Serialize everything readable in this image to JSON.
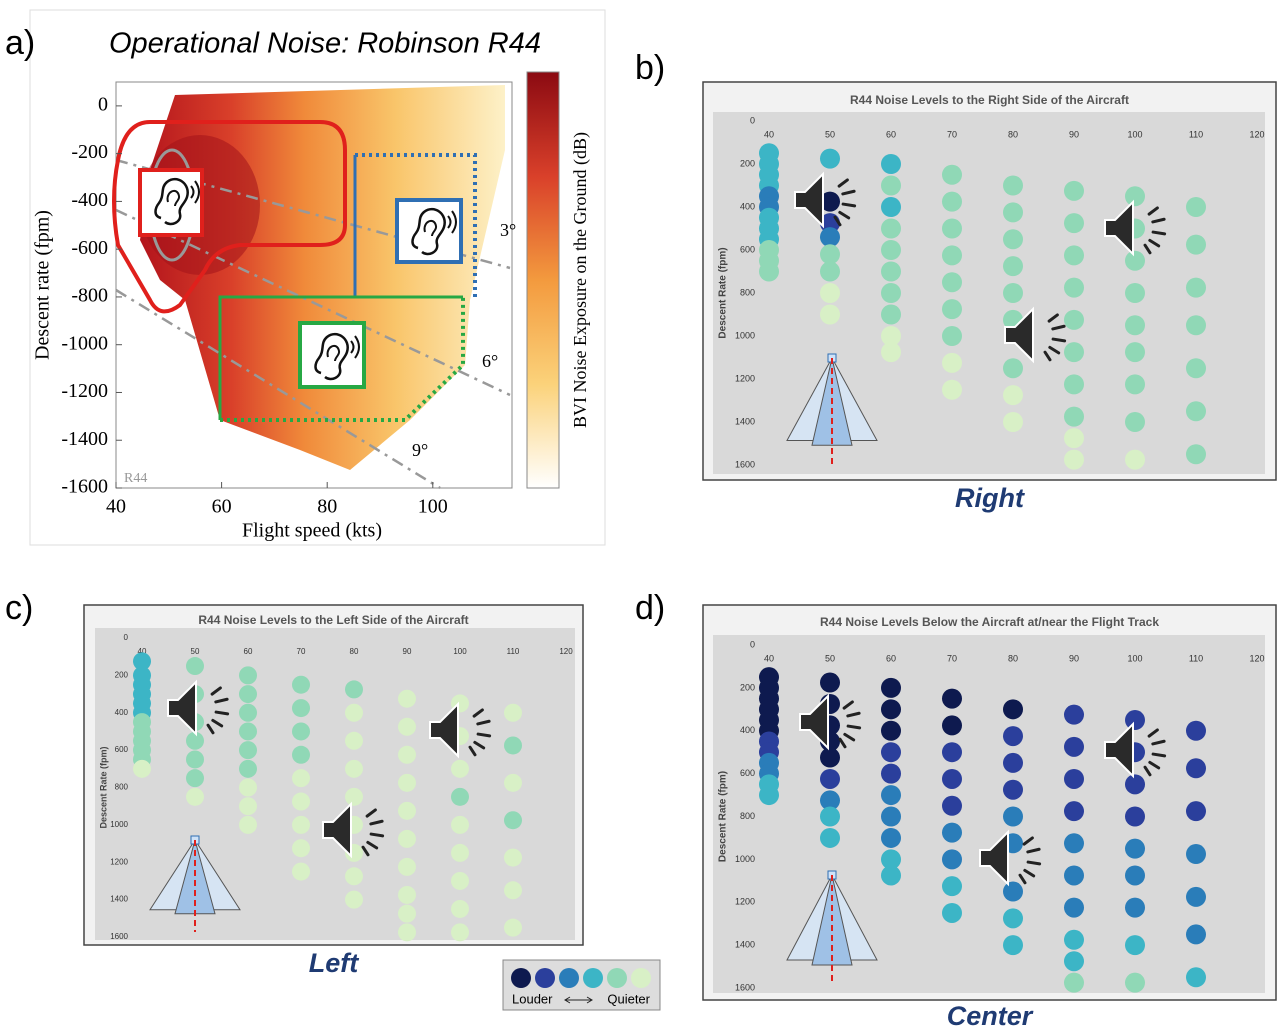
{
  "panels": [
    "a)",
    "b)",
    "c)",
    "d)"
  ],
  "legend": {
    "colors": [
      "#0e1a4f",
      "#2b3f9c",
      "#2a7db9",
      "#3cb5c6",
      "#90d8b6",
      "#d8f0c6"
    ],
    "labels": [
      "Louder",
      "Quieter"
    ]
  },
  "chart_data": [
    {
      "type": "heatmap",
      "title": "Operational Noise: Robinson R44",
      "xlabel": "Flight speed (kts)",
      "ylabel": "Descent rate (fpm)",
      "colorbar_label": "BVI Noise Exposure on the Ground (dB)",
      "xlim": [
        40,
        115
      ],
      "ylim": [
        -1600,
        100
      ],
      "xticks": [
        40,
        60,
        80,
        100
      ],
      "yticks": [
        0,
        -200,
        -400,
        -600,
        -800,
        -1000,
        -1200,
        -1400,
        -1600
      ],
      "annotations": [
        "3°",
        "6°",
        "9°"
      ],
      "watermark": "R44"
    },
    {
      "type": "scatter",
      "title": "R44 Noise Levels to the Right Side of the Aircraft",
      "ylabel": "Descent Rate (fpm)",
      "caption": "Right",
      "xlim": [
        40,
        120
      ],
      "ylim": [
        0,
        1600
      ],
      "xticks": [
        40,
        50,
        60,
        70,
        80,
        90,
        100,
        110,
        120
      ],
      "yticks": [
        0,
        200,
        400,
        600,
        800,
        1000,
        1200,
        1400,
        1600
      ],
      "columns": [
        {
          "x": 40,
          "y": [
            150,
            200,
            250,
            300,
            350,
            400,
            450,
            500,
            550,
            600,
            650,
            700
          ],
          "levels": [
            3,
            3,
            3,
            3,
            2,
            2,
            3,
            3,
            3,
            4,
            4,
            4
          ]
        },
        {
          "x": 50,
          "y": [
            175,
            375,
            475,
            540,
            620,
            700,
            800,
            900
          ],
          "levels": [
            3,
            0,
            1,
            2,
            4,
            4,
            5,
            5
          ]
        },
        {
          "x": 60,
          "y": [
            200,
            300,
            400,
            500,
            600,
            700,
            800,
            900,
            1000,
            1075
          ],
          "levels": [
            3,
            4,
            3,
            4,
            4,
            4,
            4,
            4,
            5,
            5
          ]
        },
        {
          "x": 70,
          "y": [
            250,
            375,
            500,
            625,
            750,
            875,
            1000,
            1125,
            1250
          ],
          "levels": [
            4,
            4,
            4,
            4,
            4,
            4,
            4,
            5,
            5
          ]
        },
        {
          "x": 80,
          "y": [
            300,
            425,
            550,
            675,
            800,
            925,
            1150,
            1275,
            1400
          ],
          "levels": [
            4,
            4,
            4,
            4,
            4,
            4,
            4,
            5,
            5
          ]
        },
        {
          "x": 90,
          "y": [
            325,
            475,
            625,
            775,
            925,
            1075,
            1225,
            1375,
            1475,
            1575
          ],
          "levels": [
            4,
            4,
            4,
            4,
            4,
            4,
            4,
            4,
            5,
            5
          ]
        },
        {
          "x": 100,
          "y": [
            350,
            500,
            650,
            800,
            950,
            1075,
            1225,
            1400,
            1575
          ],
          "levels": [
            4,
            4,
            4,
            4,
            4,
            4,
            4,
            4,
            5
          ]
        },
        {
          "x": 110,
          "y": [
            400,
            575,
            775,
            950,
            1150,
            1350,
            1550
          ],
          "levels": [
            4,
            4,
            4,
            4,
            4,
            4,
            4
          ]
        }
      ]
    },
    {
      "type": "scatter",
      "title": "R44 Noise Levels to the Left Side of the Aircraft",
      "ylabel": "Descent Rate (fpm)",
      "caption": "Left",
      "xlim": [
        40,
        120
      ],
      "ylim": [
        0,
        1600
      ],
      "xticks": [
        40,
        50,
        60,
        70,
        80,
        90,
        100,
        110,
        120
      ],
      "yticks": [
        0,
        200,
        400,
        600,
        800,
        1000,
        1200,
        1400,
        1600
      ],
      "columns": [
        {
          "x": 40,
          "y": [
            125,
            200,
            250,
            300,
            350,
            400,
            450,
            500,
            550,
            600,
            650,
            700
          ],
          "levels": [
            3,
            3,
            3,
            3,
            3,
            3,
            4,
            4,
            4,
            4,
            4,
            5
          ]
        },
        {
          "x": 50,
          "y": [
            150,
            300,
            450,
            550,
            650,
            750,
            850
          ],
          "levels": [
            4,
            4,
            4,
            4,
            4,
            4,
            5
          ]
        },
        {
          "x": 60,
          "y": [
            200,
            300,
            400,
            500,
            600,
            700,
            800,
            900,
            1000
          ],
          "levels": [
            4,
            4,
            4,
            4,
            4,
            4,
            5,
            5,
            5
          ]
        },
        {
          "x": 70,
          "y": [
            250,
            375,
            500,
            625,
            750,
            875,
            1000,
            1125,
            1250
          ],
          "levels": [
            4,
            4,
            4,
            4,
            5,
            5,
            5,
            5,
            5
          ]
        },
        {
          "x": 80,
          "y": [
            275,
            400,
            550,
            700,
            850,
            1000,
            1150,
            1275,
            1400
          ],
          "levels": [
            4,
            5,
            5,
            5,
            5,
            5,
            5,
            5,
            5
          ]
        },
        {
          "x": 90,
          "y": [
            325,
            475,
            625,
            775,
            925,
            1075,
            1225,
            1375,
            1475,
            1575
          ],
          "levels": [
            5,
            5,
            5,
            5,
            5,
            5,
            5,
            5,
            5,
            5
          ]
        },
        {
          "x": 100,
          "y": [
            350,
            525,
            700,
            850,
            1000,
            1150,
            1300,
            1450,
            1575
          ],
          "levels": [
            5,
            5,
            5,
            4,
            5,
            5,
            5,
            5,
            5
          ]
        },
        {
          "x": 110,
          "y": [
            400,
            575,
            775,
            975,
            1175,
            1350,
            1550
          ],
          "levels": [
            5,
            4,
            5,
            4,
            5,
            5,
            5
          ]
        }
      ]
    },
    {
      "type": "scatter",
      "title": "R44 Noise Levels Below the Aircraft at/near the Flight Track",
      "ylabel": "Descent Rate (fpm)",
      "caption": "Center",
      "xlim": [
        40,
        120
      ],
      "ylim": [
        0,
        1600
      ],
      "xticks": [
        40,
        50,
        60,
        70,
        80,
        90,
        100,
        110,
        120
      ],
      "yticks": [
        0,
        200,
        400,
        600,
        800,
        1000,
        1200,
        1400,
        1600
      ],
      "columns": [
        {
          "x": 40,
          "y": [
            150,
            200,
            250,
            300,
            350,
            400,
            450,
            500,
            550,
            600,
            650,
            700
          ],
          "levels": [
            0,
            0,
            0,
            0,
            0,
            0,
            1,
            1,
            2,
            2,
            3,
            3
          ]
        },
        {
          "x": 50,
          "y": [
            175,
            275,
            375,
            450,
            525,
            625,
            725,
            800,
            900
          ],
          "levels": [
            0,
            0,
            0,
            0,
            0,
            1,
            2,
            3,
            3
          ]
        },
        {
          "x": 60,
          "y": [
            200,
            300,
            400,
            500,
            600,
            700,
            800,
            900,
            1000,
            1075
          ],
          "levels": [
            0,
            0,
            0,
            1,
            1,
            2,
            2,
            2,
            3,
            3
          ]
        },
        {
          "x": 70,
          "y": [
            250,
            375,
            500,
            625,
            750,
            875,
            1000,
            1125,
            1250
          ],
          "levels": [
            0,
            0,
            1,
            1,
            1,
            2,
            2,
            3,
            3
          ]
        },
        {
          "x": 80,
          "y": [
            300,
            425,
            550,
            675,
            800,
            925,
            1150,
            1275,
            1400
          ],
          "levels": [
            0,
            1,
            1,
            1,
            2,
            2,
            2,
            3,
            3
          ]
        },
        {
          "x": 90,
          "y": [
            325,
            475,
            625,
            775,
            925,
            1075,
            1225,
            1375,
            1475,
            1575
          ],
          "levels": [
            1,
            1,
            1,
            1,
            2,
            2,
            2,
            3,
            3,
            4
          ]
        },
        {
          "x": 100,
          "y": [
            350,
            500,
            650,
            800,
            950,
            1075,
            1225,
            1400,
            1575
          ],
          "levels": [
            1,
            1,
            1,
            1,
            2,
            2,
            2,
            3,
            4
          ]
        },
        {
          "x": 110,
          "y": [
            400,
            575,
            775,
            975,
            1175,
            1350,
            1550
          ],
          "levels": [
            1,
            1,
            1,
            2,
            2,
            2,
            3
          ]
        }
      ]
    }
  ]
}
